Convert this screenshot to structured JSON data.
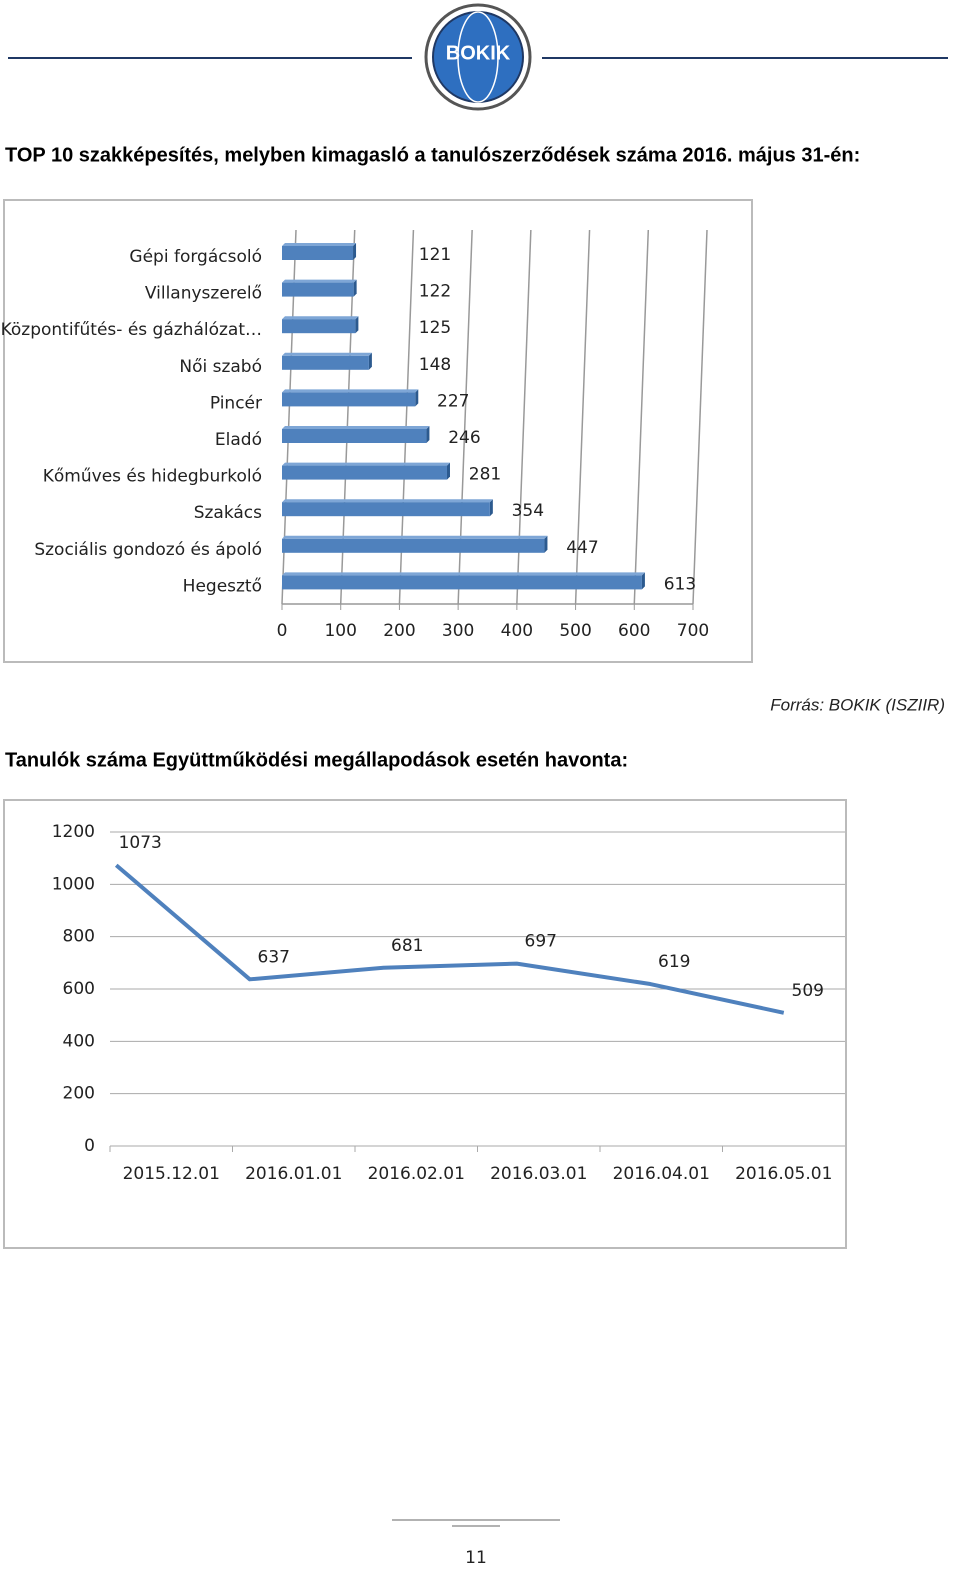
{
  "header": {
    "logo": "BOKIK"
  },
  "chart_data": [
    {
      "type": "hbar",
      "title": "TOP 10 szakképesítés, melyben kimagasló a tanulószerződések száma 2016. május 31-én:",
      "categories": [
        "Gépi forgácsoló",
        "Villanyszerelő",
        "Központifűtés- és gázhálózat…",
        "Női szabó",
        "Pincér",
        "Eladó",
        "Kőműves és hidegburkoló",
        "Szakács",
        "Szociális gondozó és ápoló",
        "Hegesztő"
      ],
      "values": [
        121,
        122,
        125,
        148,
        227,
        246,
        281,
        354,
        447,
        613
      ],
      "color": "#4f81bd",
      "xlim": [
        0,
        700
      ],
      "xticks": [
        0,
        100,
        200,
        300,
        400,
        500,
        600,
        700
      ],
      "grid": true
    },
    {
      "type": "line",
      "title": "Tanulók száma Együttműködési megállapodások esetén havonta:",
      "categories": [
        "2015.12.01",
        "2016.01.01",
        "2016.02.01",
        "2016.03.01",
        "2016.04.01",
        "2016.05.01"
      ],
      "values": [
        1073,
        637,
        681,
        697,
        619,
        509
      ],
      "color": "#4f81bd",
      "ylim": [
        0,
        1200
      ],
      "yticks": [
        0,
        200,
        400,
        600,
        800,
        1000,
        1200
      ],
      "grid": true
    }
  ],
  "source": "Forrás: BOKIK (ISZIIR)",
  "footer": {
    "page_number": "11"
  }
}
